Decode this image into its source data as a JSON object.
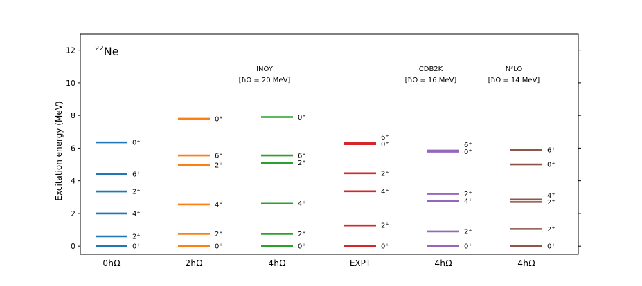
{
  "chart_data": {
    "type": "level-scheme",
    "nucleus": {
      "mass": "22",
      "symbol": "Ne"
    },
    "ylabel": "Excitation energy (MeV)",
    "ylim": [
      -0.5,
      13
    ],
    "yticks": [
      0,
      2,
      4,
      6,
      8,
      10,
      12
    ],
    "colors": [
      "#1f77b4",
      "#ff7f0e",
      "#2ca02c",
      "#d62728",
      "#9467bd",
      "#8c564b"
    ],
    "columns": [
      {
        "label": "0ħΩ",
        "levels": [
          {
            "energy": 0.0,
            "label": "0⁺"
          },
          {
            "energy": 0.6,
            "label": "2⁺"
          },
          {
            "energy": 2.0,
            "label": "4⁺"
          },
          {
            "energy": 3.35,
            "label": "2⁺"
          },
          {
            "energy": 4.4,
            "label": "6⁺"
          },
          {
            "energy": 6.35,
            "label": "0⁺"
          }
        ]
      },
      {
        "label": "2ħΩ",
        "levels": [
          {
            "energy": 0.0,
            "label": "0⁺"
          },
          {
            "energy": 0.75,
            "label": "2⁺"
          },
          {
            "energy": 2.55,
            "label": "4⁺"
          },
          {
            "energy": 4.95,
            "label": "2⁺"
          },
          {
            "energy": 5.55,
            "label": "6⁺"
          },
          {
            "energy": 7.8,
            "label": "0⁺"
          }
        ]
      },
      {
        "label": "4ħΩ",
        "levels": [
          {
            "energy": 0.0,
            "label": "0⁺"
          },
          {
            "energy": 0.75,
            "label": "2⁺"
          },
          {
            "energy": 2.6,
            "label": "4⁺"
          },
          {
            "energy": 5.1,
            "label": "2⁺"
          },
          {
            "energy": 5.55,
            "label": "6⁺"
          },
          {
            "energy": 7.9,
            "label": "0⁺"
          }
        ]
      },
      {
        "label": "EXPT",
        "levels": [
          {
            "energy": 0.0,
            "label": "0⁺"
          },
          {
            "energy": 1.27,
            "label": "2⁺"
          },
          {
            "energy": 3.36,
            "label": "4⁺"
          },
          {
            "energy": 4.46,
            "label": "2⁺"
          },
          {
            "energy": 6.24,
            "label": "0⁺"
          },
          {
            "energy": 6.31,
            "label": "6⁺"
          }
        ]
      },
      {
        "label": "4ħΩ",
        "levels": [
          {
            "energy": 0.0,
            "label": "0⁺"
          },
          {
            "energy": 0.9,
            "label": "2⁺"
          },
          {
            "energy": 2.75,
            "label": "4⁺"
          },
          {
            "energy": 3.2,
            "label": "2⁺"
          },
          {
            "energy": 5.78,
            "label": "0⁺"
          },
          {
            "energy": 5.85,
            "label": "6⁺"
          }
        ]
      },
      {
        "label": "4ħΩ",
        "levels": [
          {
            "energy": 0.0,
            "label": "0⁺"
          },
          {
            "energy": 1.05,
            "label": "2⁺"
          },
          {
            "energy": 2.7,
            "label": "2⁺"
          },
          {
            "energy": 2.85,
            "label": "4⁺"
          },
          {
            "energy": 5.0,
            "label": "0⁺"
          },
          {
            "energy": 5.9,
            "label": "6⁺"
          }
        ]
      }
    ],
    "annotations": [
      {
        "line1": "INOY",
        "line2": "[ħΩ = 20 MeV]",
        "above_column": 2
      },
      {
        "line1": "CDB2K",
        "line2": "[ħΩ = 16 MeV]",
        "above_column": 4
      },
      {
        "line1": "N³LO",
        "line2": "[ħΩ = 14 MeV]",
        "above_column": 5
      }
    ]
  }
}
